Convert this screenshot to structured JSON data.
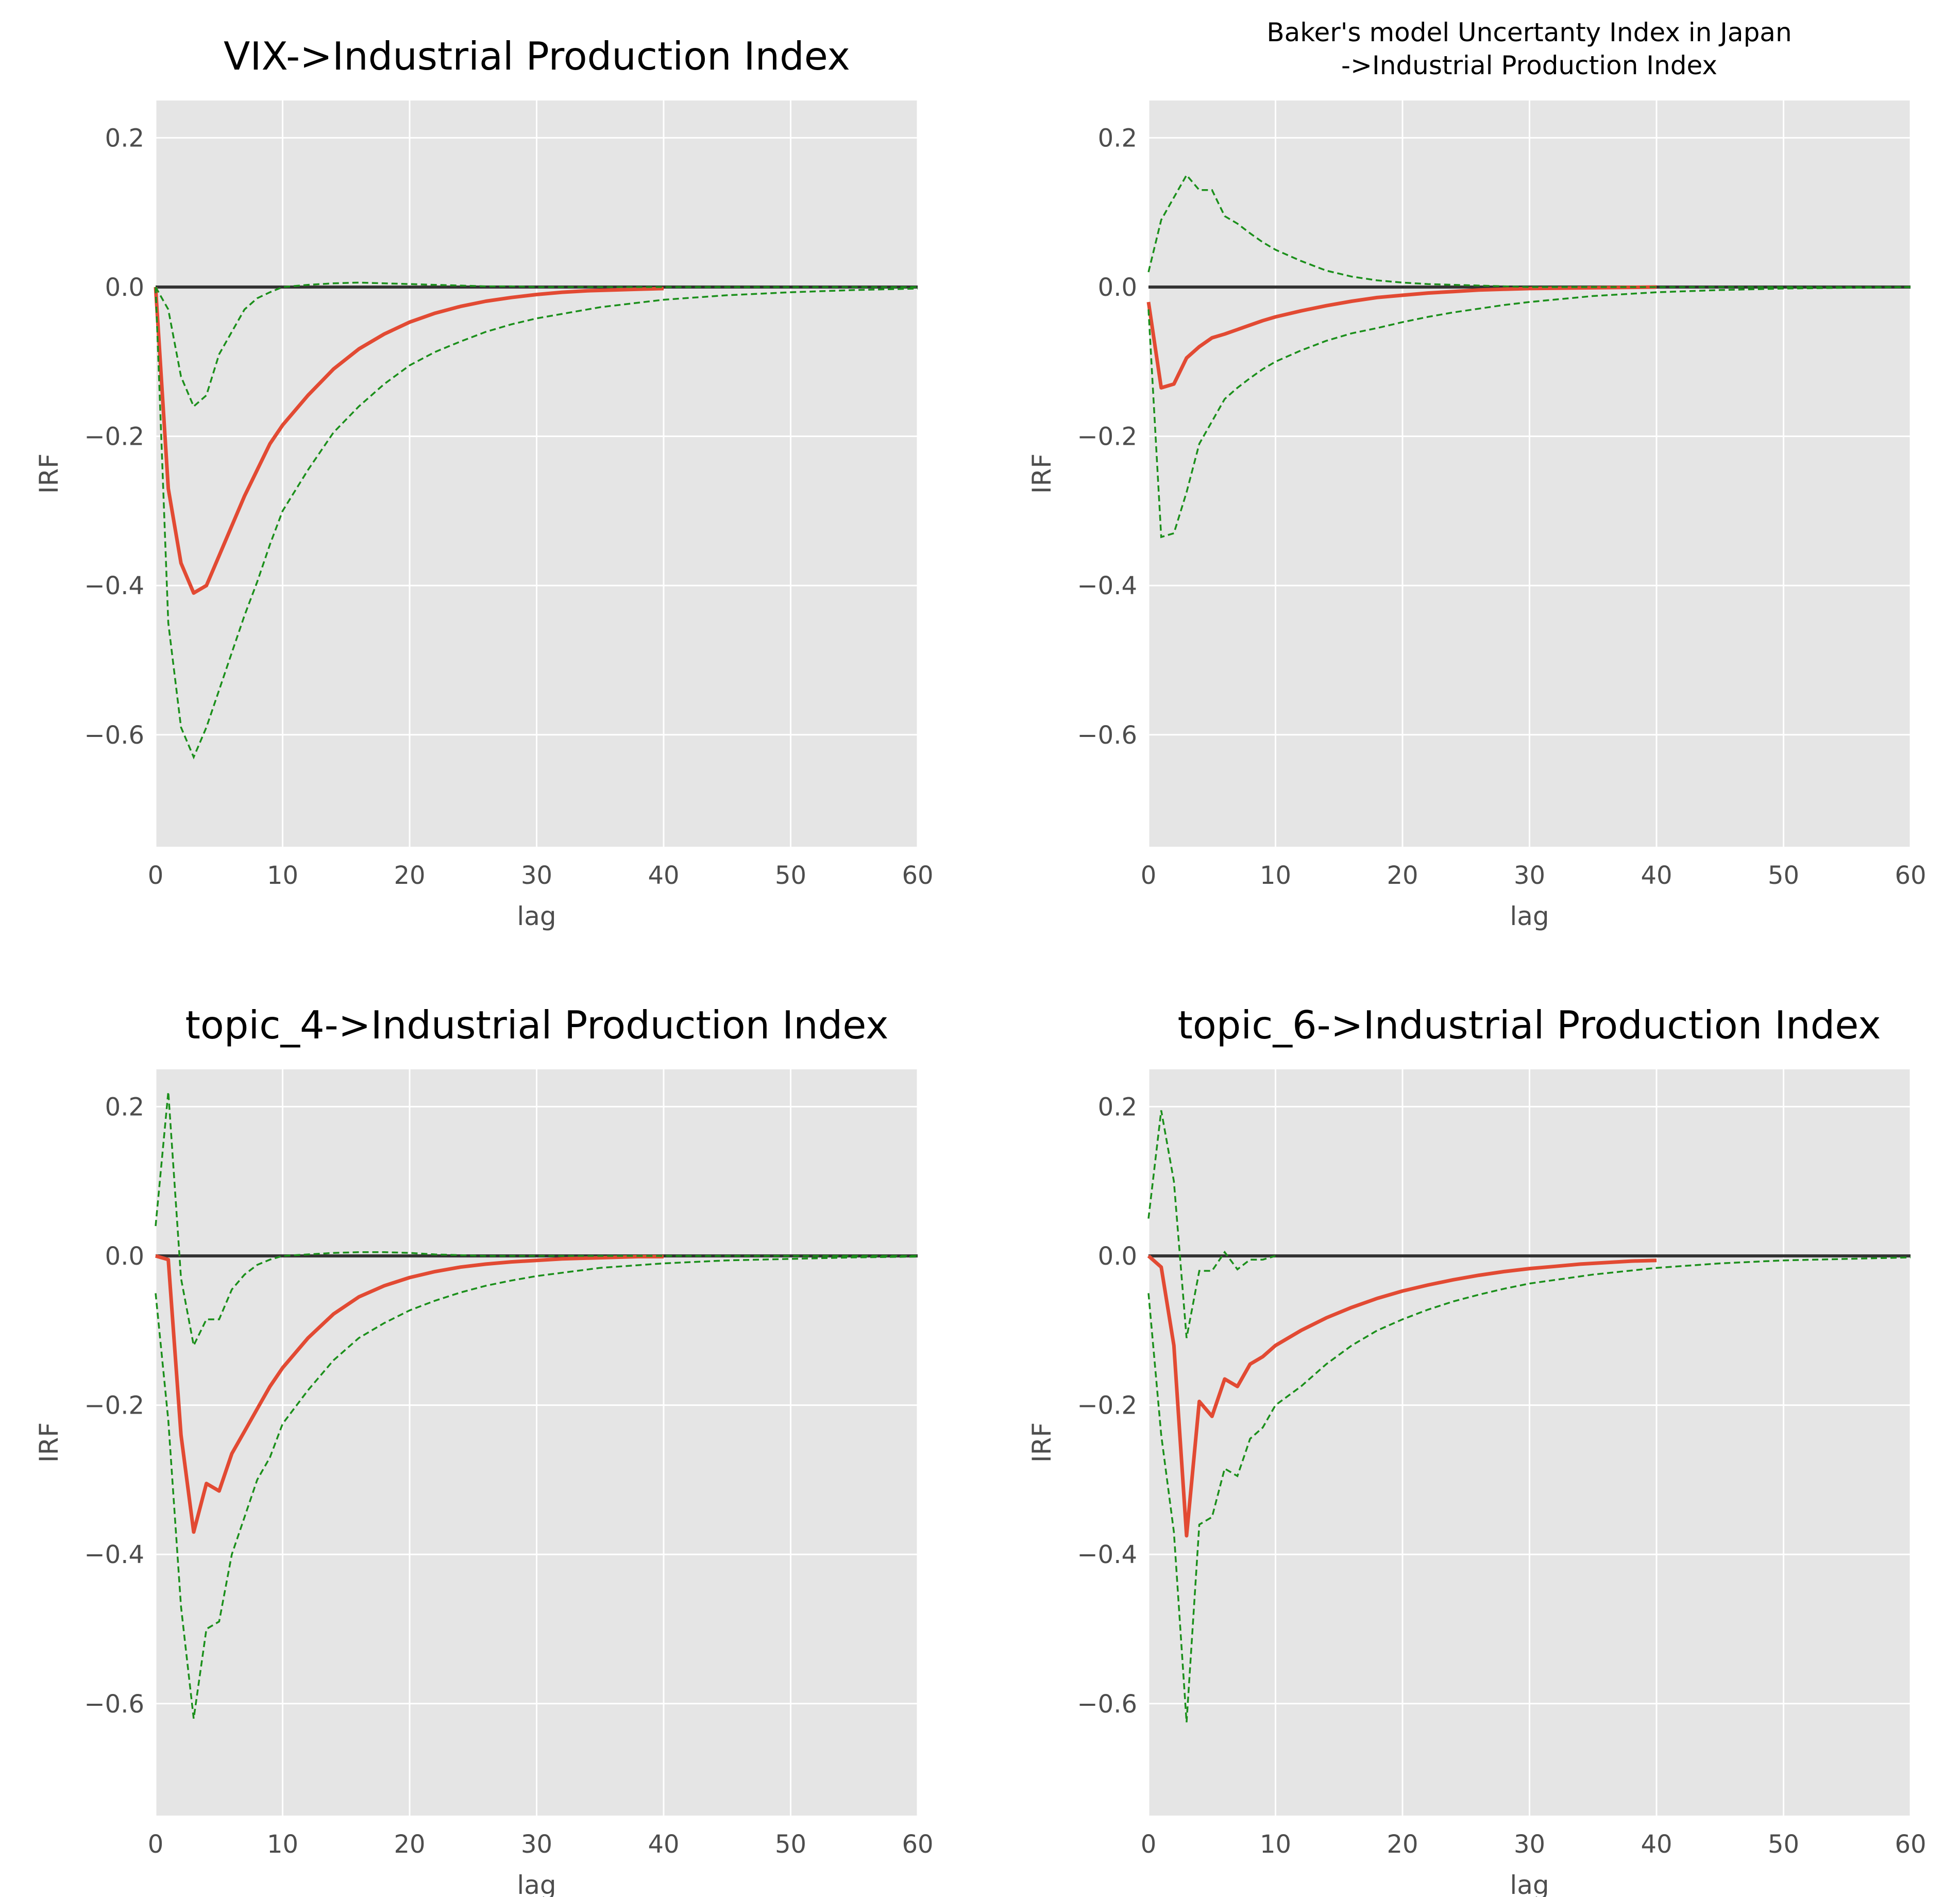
{
  "colors": {
    "panel_bg": "#e5e5e5",
    "irf_line": "#e24a33",
    "ci_line": "#1b8f1b",
    "zero_line": "#333333",
    "tick_text": "#4d4d4d"
  },
  "chart_data": [
    {
      "type": "line",
      "title": "VIX->Industrial Production Index",
      "title_lines": [
        "VIX->Industrial Production Index"
      ],
      "xlabel": "lag",
      "ylabel": "IRF",
      "xlim": [
        0,
        60
      ],
      "ylim": [
        -0.75,
        0.25
      ],
      "xticks": [
        0,
        10,
        20,
        30,
        40,
        50,
        60
      ],
      "yticks": [
        0.2,
        0.0,
        -0.2,
        -0.4,
        -0.6
      ],
      "xtick_labels": [
        "0",
        "10",
        "20",
        "30",
        "40",
        "50",
        "60"
      ],
      "ytick_labels": [
        "0.2",
        "0.0",
        "−0.2",
        "−0.4",
        "−0.6"
      ],
      "zero_line": [
        0,
        60
      ],
      "series": [
        {
          "name": "irf",
          "style": "solid",
          "x": [
            0,
            1,
            2,
            3,
            4,
            5,
            6,
            7,
            8,
            9,
            10,
            12,
            14,
            16,
            18,
            20,
            22,
            24,
            26,
            28,
            30,
            32,
            34,
            36,
            38,
            40
          ],
          "y": [
            0.0,
            -0.27,
            -0.37,
            -0.41,
            -0.4,
            -0.36,
            -0.32,
            -0.28,
            -0.245,
            -0.21,
            -0.185,
            -0.145,
            -0.11,
            -0.083,
            -0.063,
            -0.047,
            -0.035,
            -0.026,
            -0.019,
            -0.014,
            -0.01,
            -0.007,
            -0.005,
            -0.004,
            -0.003,
            -0.002
          ]
        },
        {
          "name": "ci-upper",
          "style": "dashed",
          "x": [
            0,
            1,
            2,
            3,
            4,
            5,
            6,
            7,
            8,
            9,
            10,
            12,
            14,
            16,
            18,
            20,
            22,
            24,
            26,
            28,
            30,
            40,
            50,
            60
          ],
          "y": [
            0.0,
            -0.03,
            -0.12,
            -0.16,
            -0.145,
            -0.09,
            -0.06,
            -0.03,
            -0.015,
            -0.007,
            0.0,
            0.003,
            0.005,
            0.006,
            0.005,
            0.004,
            0.003,
            0.002,
            0.001,
            0.001,
            0.0,
            0.0,
            0.0,
            0.0
          ]
        },
        {
          "name": "ci-lower",
          "style": "dashed",
          "x": [
            0,
            1,
            2,
            3,
            4,
            5,
            6,
            7,
            8,
            9,
            10,
            12,
            14,
            16,
            18,
            20,
            22,
            24,
            26,
            28,
            30,
            35,
            40,
            45,
            50,
            55,
            60
          ],
          "y": [
            0.0,
            -0.45,
            -0.59,
            -0.63,
            -0.59,
            -0.54,
            -0.49,
            -0.44,
            -0.395,
            -0.345,
            -0.3,
            -0.245,
            -0.195,
            -0.16,
            -0.13,
            -0.105,
            -0.087,
            -0.073,
            -0.06,
            -0.05,
            -0.042,
            -0.027,
            -0.017,
            -0.011,
            -0.007,
            -0.004,
            -0.002
          ]
        }
      ]
    },
    {
      "type": "line",
      "title": "Baker's model Uncertanty Index in Japan ->Industrial Production Index",
      "title_lines": [
        "Baker's model Uncertanty Index in Japan",
        "->Industrial Production Index"
      ],
      "xlabel": "lag",
      "ylabel": "IRF",
      "xlim": [
        0,
        60
      ],
      "ylim": [
        -0.75,
        0.25
      ],
      "xticks": [
        0,
        10,
        20,
        30,
        40,
        50,
        60
      ],
      "yticks": [
        0.2,
        0.0,
        -0.2,
        -0.4,
        -0.6
      ],
      "xtick_labels": [
        "0",
        "10",
        "20",
        "30",
        "40",
        "50",
        "60"
      ],
      "ytick_labels": [
        "0.2",
        "0.0",
        "−0.2",
        "−0.4",
        "−0.6"
      ],
      "zero_line": [
        0,
        60
      ],
      "series": [
        {
          "name": "irf",
          "style": "solid",
          "x": [
            0,
            1,
            2,
            3,
            4,
            5,
            6,
            7,
            8,
            9,
            10,
            12,
            14,
            16,
            18,
            20,
            22,
            24,
            26,
            28,
            30,
            35,
            40
          ],
          "y": [
            -0.02,
            -0.135,
            -0.13,
            -0.095,
            -0.08,
            -0.068,
            -0.063,
            -0.057,
            -0.051,
            -0.045,
            -0.04,
            -0.032,
            -0.025,
            -0.019,
            -0.014,
            -0.011,
            -0.008,
            -0.006,
            -0.004,
            -0.003,
            -0.002,
            -0.001,
            0.0
          ]
        },
        {
          "name": "ci-upper",
          "style": "dashed",
          "x": [
            0,
            1,
            2,
            3,
            4,
            5,
            6,
            7,
            8,
            9,
            10,
            12,
            14,
            16,
            18,
            20,
            22,
            24,
            26,
            28,
            30,
            40,
            50,
            60
          ],
          "y": [
            0.02,
            0.09,
            0.12,
            0.15,
            0.13,
            0.13,
            0.095,
            0.085,
            0.072,
            0.06,
            0.05,
            0.035,
            0.022,
            0.014,
            0.009,
            0.006,
            0.004,
            0.003,
            0.002,
            0.001,
            0.0,
            0.0,
            0.0,
            0.0
          ]
        },
        {
          "name": "ci-lower",
          "style": "dashed",
          "x": [
            0,
            1,
            2,
            3,
            4,
            5,
            6,
            7,
            8,
            9,
            10,
            12,
            14,
            16,
            18,
            20,
            22,
            24,
            26,
            28,
            30,
            35,
            40,
            45,
            50,
            55,
            60
          ],
          "y": [
            -0.03,
            -0.335,
            -0.33,
            -0.275,
            -0.21,
            -0.18,
            -0.15,
            -0.135,
            -0.122,
            -0.11,
            -0.1,
            -0.085,
            -0.072,
            -0.062,
            -0.055,
            -0.047,
            -0.04,
            -0.034,
            -0.029,
            -0.024,
            -0.02,
            -0.012,
            -0.007,
            -0.004,
            -0.002,
            -0.001,
            0.0
          ]
        }
      ]
    },
    {
      "type": "line",
      "title": "topic_4->Industrial Production Index",
      "title_lines": [
        "topic_4->Industrial Production Index"
      ],
      "xlabel": "lag",
      "ylabel": "IRF",
      "xlim": [
        0,
        60
      ],
      "ylim": [
        -0.75,
        0.25
      ],
      "xticks": [
        0,
        10,
        20,
        30,
        40,
        50,
        60
      ],
      "yticks": [
        0.2,
        0.0,
        -0.2,
        -0.4,
        -0.6
      ],
      "xtick_labels": [
        "0",
        "10",
        "20",
        "30",
        "40",
        "50",
        "60"
      ],
      "ytick_labels": [
        "0.2",
        "0.0",
        "−0.2",
        "−0.4",
        "−0.6"
      ],
      "zero_line": [
        0,
        60
      ],
      "series": [
        {
          "name": "irf",
          "style": "solid",
          "x": [
            0,
            1,
            2,
            3,
            4,
            5,
            6,
            7,
            8,
            9,
            10,
            12,
            14,
            16,
            18,
            20,
            22,
            24,
            26,
            28,
            30,
            32,
            34,
            36,
            38,
            40
          ],
          "y": [
            0.0,
            -0.005,
            -0.24,
            -0.37,
            -0.305,
            -0.315,
            -0.265,
            -0.235,
            -0.205,
            -0.175,
            -0.15,
            -0.11,
            -0.078,
            -0.055,
            -0.04,
            -0.029,
            -0.021,
            -0.015,
            -0.011,
            -0.008,
            -0.006,
            -0.004,
            -0.003,
            -0.002,
            -0.001,
            -0.001
          ]
        },
        {
          "name": "ci-upper",
          "style": "dashed",
          "x": [
            0,
            1,
            2,
            3,
            4,
            5,
            6,
            7,
            8,
            9,
            10,
            12,
            14,
            16,
            18,
            20,
            22,
            24,
            26,
            28,
            30,
            40,
            50,
            60
          ],
          "y": [
            0.04,
            0.22,
            -0.03,
            -0.12,
            -0.085,
            -0.085,
            -0.045,
            -0.025,
            -0.012,
            -0.005,
            0.0,
            0.002,
            0.004,
            0.005,
            0.005,
            0.004,
            0.002,
            0.001,
            0.0,
            0.0,
            0.0,
            0.0,
            0.0,
            0.0
          ]
        },
        {
          "name": "ci-lower",
          "style": "dashed",
          "x": [
            0,
            1,
            2,
            3,
            4,
            5,
            6,
            7,
            8,
            9,
            10,
            12,
            14,
            16,
            18,
            20,
            22,
            24,
            26,
            28,
            30,
            35,
            40,
            45,
            50,
            55,
            60
          ],
          "y": [
            -0.05,
            -0.22,
            -0.47,
            -0.62,
            -0.5,
            -0.49,
            -0.4,
            -0.35,
            -0.3,
            -0.27,
            -0.225,
            -0.18,
            -0.14,
            -0.11,
            -0.09,
            -0.073,
            -0.06,
            -0.049,
            -0.04,
            -0.033,
            -0.027,
            -0.016,
            -0.01,
            -0.006,
            -0.004,
            -0.002,
            -0.001
          ]
        }
      ]
    },
    {
      "type": "line",
      "title": "topic_6->Industrial Production Index",
      "title_lines": [
        "topic_6->Industrial Production Index"
      ],
      "xlabel": "lag",
      "ylabel": "IRF",
      "xlim": [
        0,
        60
      ],
      "ylim": [
        -0.75,
        0.25
      ],
      "xticks": [
        0,
        10,
        20,
        30,
        40,
        50,
        60
      ],
      "yticks": [
        0.2,
        0.0,
        -0.2,
        -0.4,
        -0.6
      ],
      "xtick_labels": [
        "0",
        "10",
        "20",
        "30",
        "40",
        "50",
        "60"
      ],
      "ytick_labels": [
        "0.2",
        "0.0",
        "−0.2",
        "−0.4",
        "−0.6"
      ],
      "zero_line": [
        0,
        60
      ],
      "series": [
        {
          "name": "irf",
          "style": "solid",
          "x": [
            0,
            1,
            2,
            3,
            4,
            5,
            6,
            7,
            8,
            9,
            10,
            12,
            14,
            16,
            18,
            20,
            22,
            24,
            26,
            28,
            30,
            32,
            34,
            36,
            38,
            40
          ],
          "y": [
            0.0,
            -0.015,
            -0.12,
            -0.375,
            -0.195,
            -0.215,
            -0.165,
            -0.175,
            -0.145,
            -0.135,
            -0.12,
            -0.1,
            -0.083,
            -0.069,
            -0.057,
            -0.047,
            -0.039,
            -0.032,
            -0.026,
            -0.021,
            -0.017,
            -0.014,
            -0.011,
            -0.009,
            -0.007,
            -0.006
          ]
        },
        {
          "name": "ci-upper",
          "style": "dashed",
          "x": [
            0,
            1,
            2,
            3,
            4,
            5,
            6,
            7,
            8,
            9,
            10
          ],
          "y": [
            0.05,
            0.195,
            0.1,
            -0.11,
            -0.02,
            -0.02,
            0.005,
            -0.018,
            -0.005,
            -0.005,
            0.0
          ]
        },
        {
          "name": "ci-lower",
          "style": "dashed",
          "x": [
            0,
            1,
            2,
            3,
            4,
            5,
            6,
            7,
            8,
            9,
            10,
            12,
            14,
            16,
            18,
            20,
            22,
            24,
            26,
            28,
            30,
            35,
            40,
            45,
            50,
            55,
            60
          ],
          "y": [
            -0.05,
            -0.24,
            -0.37,
            -0.625,
            -0.36,
            -0.35,
            -0.285,
            -0.295,
            -0.245,
            -0.23,
            -0.2,
            -0.175,
            -0.145,
            -0.12,
            -0.1,
            -0.085,
            -0.072,
            -0.061,
            -0.052,
            -0.044,
            -0.037,
            -0.025,
            -0.016,
            -0.01,
            -0.006,
            -0.004,
            -0.002
          ]
        }
      ]
    }
  ]
}
